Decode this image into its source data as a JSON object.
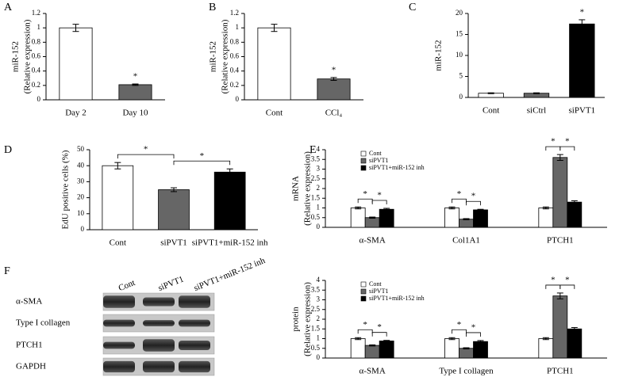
{
  "chart_data": [
    {
      "type": "bar",
      "label": "A",
      "ylabel": [
        "miR-152",
        "(Relative expression)"
      ],
      "categories": [
        "Day 2",
        "Day 10"
      ],
      "values": [
        1.0,
        0.21
      ],
      "errors": [
        0.05,
        0.01
      ],
      "colors": [
        "#ffffff",
        "#666666"
      ],
      "ylim": [
        0,
        1.2
      ],
      "yticks": [
        0,
        0.2,
        0.4,
        0.6,
        0.8,
        1,
        1.2
      ],
      "annotations": [
        {
          "text": "*",
          "at": "Day 10"
        }
      ]
    },
    {
      "type": "bar",
      "label": "B",
      "ylabel": [
        "miR-152",
        "(Relative expression)"
      ],
      "categories": [
        "Cont",
        "CCl₄"
      ],
      "values": [
        1.0,
        0.29
      ],
      "errors": [
        0.05,
        0.02
      ],
      "colors": [
        "#ffffff",
        "#666666"
      ],
      "ylim": [
        0,
        1.2
      ],
      "yticks": [
        0,
        0.2,
        0.4,
        0.6,
        0.8,
        1,
        1.2
      ],
      "annotations": [
        {
          "text": "*",
          "at": "CCl₄"
        }
      ]
    },
    {
      "type": "bar",
      "label": "C",
      "ylabel": [
        "miR-152"
      ],
      "categories": [
        "Cont",
        "siCtrl",
        "siPVT1"
      ],
      "values": [
        1,
        1,
        17.5
      ],
      "errors": [
        0.1,
        0.1,
        1.0
      ],
      "colors": [
        "#ffffff",
        "#666666",
        "#000000"
      ],
      "ylim": [
        0,
        20
      ],
      "yticks": [
        0,
        5,
        10,
        15,
        20
      ],
      "annotations": [
        {
          "text": "*",
          "at": "siPVT1"
        }
      ]
    },
    {
      "type": "bar",
      "label": "D",
      "ylabel": [
        "EdU positive cells (%)"
      ],
      "categories": [
        "Cont",
        "siPVT1",
        "siPVT1+miR-152 inh"
      ],
      "values": [
        40,
        25,
        36
      ],
      "errors": [
        2,
        1.2,
        2
      ],
      "colors": [
        "#ffffff",
        "#666666",
        "#000000"
      ],
      "ylim": [
        0,
        50
      ],
      "yticks": [
        0,
        10,
        20,
        30,
        40,
        50
      ],
      "annotations": [
        {
          "text": "*",
          "from": "Cont",
          "to": "siPVT1"
        },
        {
          "text": "*",
          "from": "siPVT1",
          "to": "siPVT1+miR-152 inh"
        }
      ]
    },
    {
      "type": "grouped_bar",
      "label": "E",
      "ylabel": [
        "mRNA",
        "(Relative expression)"
      ],
      "legend": "upper left",
      "categories": [
        "α-SMA",
        "Col1A1",
        "PTCH1"
      ],
      "series": [
        {
          "name": "Cont",
          "color": "#ffffff",
          "values": [
            1,
            1,
            1
          ],
          "errors": [
            0.05,
            0.05,
            0.05
          ]
        },
        {
          "name": "siPVT1",
          "color": "#666666",
          "values": [
            0.5,
            0.42,
            3.6
          ],
          "errors": [
            0.03,
            0.03,
            0.15
          ]
        },
        {
          "name": "siPVT1+miR-152 inh",
          "color": "#000000",
          "values": [
            0.93,
            0.9,
            1.3
          ],
          "errors": [
            0.05,
            0.03,
            0.07
          ]
        }
      ],
      "ylim": [
        0,
        4
      ],
      "yticks": [
        0,
        0.5,
        1,
        1.5,
        2,
        2.5,
        3,
        3.5,
        4
      ],
      "annotations": [
        {
          "text": "*",
          "category": "α-SMA",
          "from": "Cont",
          "to": "siPVT1"
        },
        {
          "text": "*",
          "category": "α-SMA",
          "from": "siPVT1",
          "to": "siPVT1+miR-152 inh"
        },
        {
          "text": "*",
          "category": "Col1A1",
          "from": "Cont",
          "to": "siPVT1"
        },
        {
          "text": "*",
          "category": "Col1A1",
          "from": "siPVT1",
          "to": "siPVT1+miR-152 inh"
        },
        {
          "text": "*",
          "category": "PTCH1",
          "from": "Cont",
          "to": "siPVT1"
        },
        {
          "text": "*",
          "category": "PTCH1",
          "from": "siPVT1",
          "to": "siPVT1+miR-152 inh"
        }
      ]
    },
    {
      "type": "grouped_bar",
      "ylabel": [
        "protein",
        "(Relative expression)"
      ],
      "legend": "upper left",
      "categories": [
        "α-SMA",
        "Type I collagen",
        "PTCH1"
      ],
      "series": [
        {
          "name": "Cont",
          "color": "#ffffff",
          "values": [
            1,
            1,
            1
          ],
          "errors": [
            0.05,
            0.05,
            0.05
          ]
        },
        {
          "name": "siPVT1",
          "color": "#666666",
          "values": [
            0.65,
            0.5,
            3.2
          ],
          "errors": [
            0.03,
            0.03,
            0.15
          ]
        },
        {
          "name": "siPVT1+miR-152 inh",
          "color": "#000000",
          "values": [
            0.88,
            0.85,
            1.5
          ],
          "errors": [
            0.03,
            0.05,
            0.07
          ]
        }
      ],
      "ylim": [
        0,
        4
      ],
      "yticks": [
        0,
        0.5,
        1,
        1.5,
        2,
        2.5,
        3,
        3.5,
        4
      ],
      "annotations": [
        {
          "text": "*",
          "category": "α-SMA",
          "from": "Cont",
          "to": "siPVT1"
        },
        {
          "text": "*",
          "category": "α-SMA",
          "from": "siPVT1",
          "to": "siPVT1+miR-152 inh"
        },
        {
          "text": "*",
          "category": "Type I collagen",
          "from": "Cont",
          "to": "siPVT1"
        },
        {
          "text": "*",
          "category": "Type I collagen",
          "from": "siPVT1",
          "to": "siPVT1+miR-152 inh"
        },
        {
          "text": "*",
          "category": "PTCH1",
          "from": "Cont",
          "to": "siPVT1"
        },
        {
          "text": "*",
          "category": "PTCH1",
          "from": "siPVT1",
          "to": "siPVT1+miR-152 inh"
        }
      ]
    }
  ],
  "blot": {
    "label": "F",
    "lanes": [
      "Cont",
      "siPVT1",
      "siPVT1+miR-152 inh"
    ],
    "rows": [
      "α-SMA",
      "Type I collagen",
      "PTCH1",
      "GAPDH"
    ]
  }
}
